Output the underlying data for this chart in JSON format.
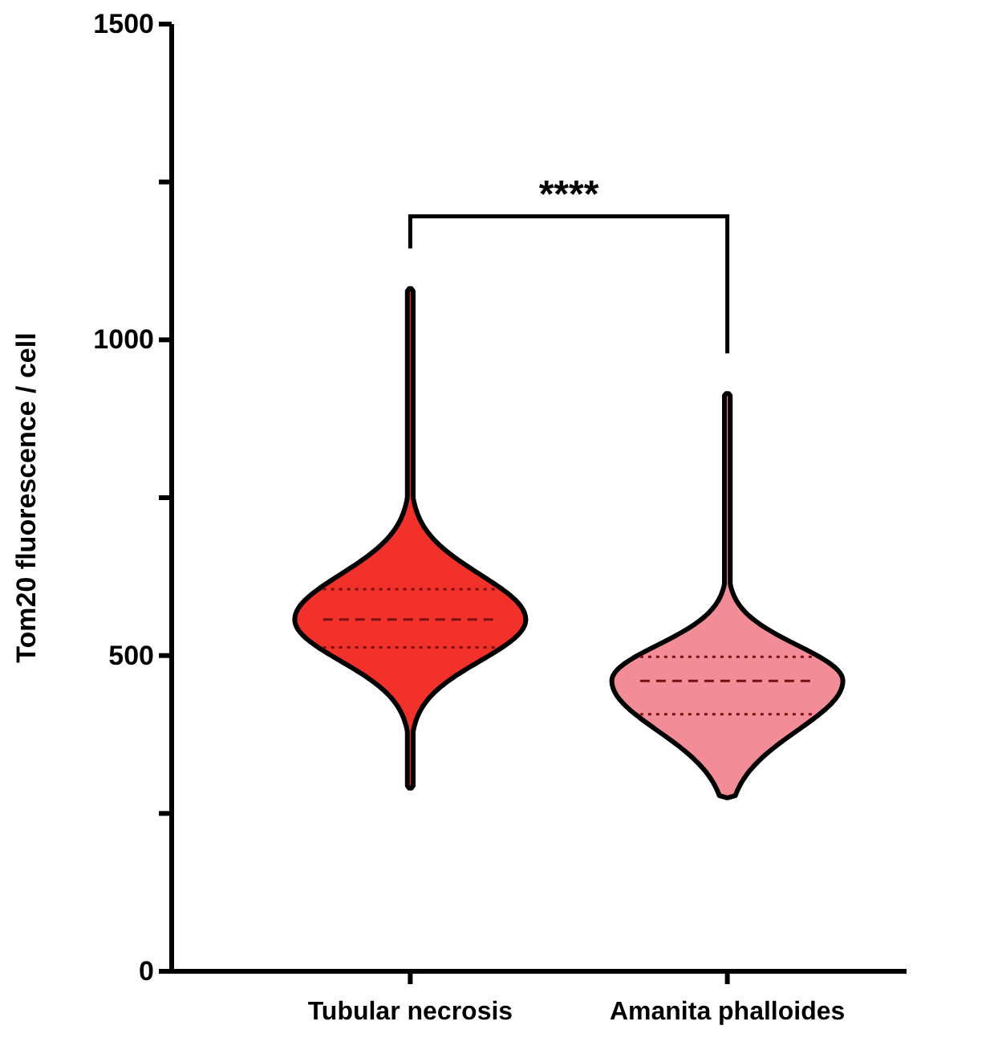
{
  "chart_data": {
    "type": "box",
    "categories": [
      "Tubular necrosis",
      "Amanita phalloides"
    ],
    "colors": [
      "#f2312a",
      "#f28c96"
    ],
    "boxes": [
      {
        "low": 290,
        "q1": 513,
        "median": 557,
        "q3": 605,
        "high": 1081
      },
      {
        "low": 275,
        "q1": 407,
        "median": 460,
        "q3": 498,
        "high": 915
      }
    ],
    "ylabel": "Tom20 fluorescence / cell",
    "ylim": [
      0,
      1500
    ],
    "yticks": [
      0,
      {
        "value": 250,
        "label": null
      },
      500,
      {
        "value": 750,
        "label": null
      },
      1000,
      {
        "value": 1250,
        "label": null
      },
      1500
    ],
    "annotations": [
      "****"
    ]
  }
}
